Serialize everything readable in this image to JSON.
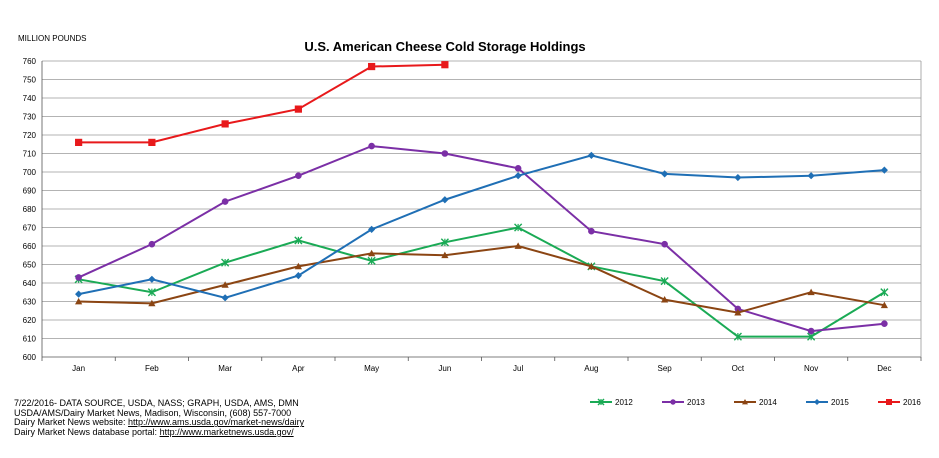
{
  "chart_data": {
    "type": "line",
    "title": "U.S. American Cheese Cold Storage Holdings",
    "ylabel": "MILLION POUNDS",
    "xlabel": "",
    "ylim": [
      600,
      760
    ],
    "ytick_step": 10,
    "grid": true,
    "legend_position": "bottom-right",
    "categories": [
      "Jan",
      "Feb",
      "Mar",
      "Apr",
      "May",
      "Jun",
      "Jul",
      "Aug",
      "Sep",
      "Oct",
      "Nov",
      "Dec"
    ],
    "series": [
      {
        "name": "2012",
        "color": "#1aaa55",
        "marker": "x",
        "values": [
          642,
          635,
          651,
          663,
          652,
          662,
          670,
          649,
          641,
          611,
          611,
          635
        ]
      },
      {
        "name": "2013",
        "color": "#7b2fa6",
        "marker": "circle",
        "values": [
          643,
          661,
          684,
          698,
          714,
          710,
          702,
          668,
          661,
          626,
          614,
          618
        ]
      },
      {
        "name": "2014",
        "color": "#8b4513",
        "marker": "triangle",
        "values": [
          630,
          629,
          639,
          649,
          656,
          655,
          660,
          649,
          631,
          624,
          635,
          628
        ]
      },
      {
        "name": "2015",
        "color": "#1f6fb5",
        "marker": "diamond",
        "values": [
          634,
          642,
          632,
          644,
          669,
          685,
          698,
          709,
          699,
          697,
          698,
          701
        ]
      },
      {
        "name": "2016",
        "color": "#e8191b",
        "marker": "square",
        "values": [
          716,
          716,
          726,
          734,
          757,
          758,
          null,
          null,
          null,
          null,
          null,
          null
        ]
      }
    ]
  },
  "footer": {
    "line1": "7/22/2016- DATA SOURCE, USDA, NASS; GRAPH, USDA, AMS, DMN",
    "line2": "USDA/AMS/Dairy Market News, Madison, Wisconsin, (608) 557-7000",
    "line3_label": "Dairy Market News website:  ",
    "line3_link": "http://www.ams.usda.gov/market-news/dairy",
    "line4_label": "Dairy Market News database portal: ",
    "line4_link": "http://www.marketnews.usda.gov/"
  }
}
